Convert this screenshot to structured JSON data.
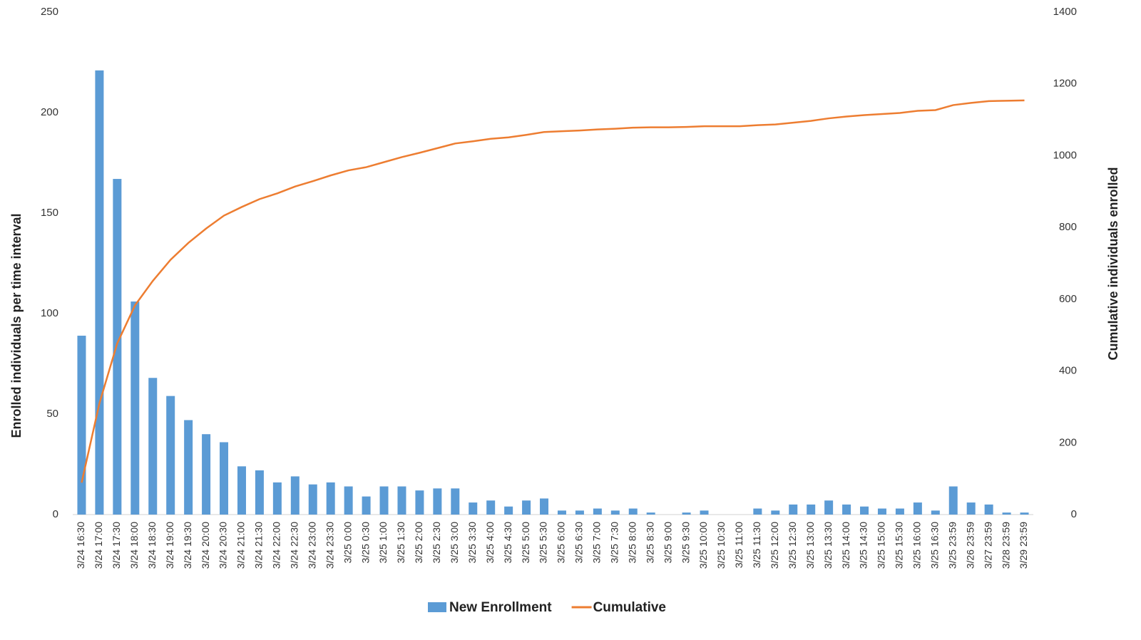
{
  "chart_data": {
    "type": "bar_line",
    "y_label": "Enrolled individuals per time interval",
    "y2_label": "Cumulative individuals enrolled",
    "categories": [
      "3/24 16:30",
      "3/24 17:00",
      "3/24 17:30",
      "3/24 18:00",
      "3/24 18:30",
      "3/24 19:00",
      "3/24 19:30",
      "3/24 20:00",
      "3/24 20:30",
      "3/24 21:00",
      "3/24 21:30",
      "3/24 22:00",
      "3/24 22:30",
      "3/24 23:00",
      "3/24 23:30",
      "3/25 0:00",
      "3/25 0:30",
      "3/25 1:00",
      "3/25 1:30",
      "3/25 2:00",
      "3/25 2:30",
      "3/25 3:00",
      "3/25 3:30",
      "3/25 4:00",
      "3/25 4:30",
      "3/25 5:00",
      "3/25 5:30",
      "3/25 6:00",
      "3/25 6:30",
      "3/25 7:00",
      "3/25 7:30",
      "3/25 8:00",
      "3/25 8:30",
      "3/25 9:00",
      "3/25 9:30",
      "3/25 10:00",
      "3/25 10:30",
      "3/25 11:00",
      "3/25 11:30",
      "3/25 12:00",
      "3/25 12:30",
      "3/25 13:00",
      "3/25 13:30",
      "3/25 14:00",
      "3/25 14:30",
      "3/25 15:00",
      "3/25 15:30",
      "3/25 16:00",
      "3/25 16:30",
      "3/25 23:59",
      "3/26 23:59",
      "3/27 23:59",
      "3/28 23:59",
      "3/29 23:59"
    ],
    "series": [
      {
        "name": "New Enrollment",
        "type": "bar",
        "color": "#5b9bd5",
        "values": [
          89,
          221,
          167,
          106,
          68,
          59,
          47,
          40,
          36,
          24,
          22,
          16,
          19,
          15,
          16,
          14,
          9,
          14,
          14,
          12,
          13,
          13,
          6,
          7,
          4,
          7,
          8,
          2,
          2,
          3,
          2,
          3,
          1,
          0,
          1,
          2,
          0,
          0,
          3,
          2,
          5,
          5,
          7,
          5,
          4,
          3,
          3,
          6,
          2,
          14,
          6,
          5,
          1,
          1
        ]
      },
      {
        "name": "Cumulative",
        "type": "line",
        "axis": "y2",
        "color": "#ed7d31",
        "values": [
          89,
          310,
          477,
          583,
          651,
          710,
          757,
          797,
          833,
          857,
          879,
          895,
          914,
          929,
          945,
          959,
          968,
          982,
          996,
          1008,
          1021,
          1034,
          1040,
          1047,
          1051,
          1058,
          1066,
          1068,
          1070,
          1073,
          1075,
          1078,
          1079,
          1079,
          1080,
          1082,
          1082,
          1082,
          1085,
          1087,
          1092,
          1097,
          1104,
          1109,
          1113,
          1116,
          1119,
          1125,
          1127,
          1141,
          1147,
          1152,
          1153,
          1154
        ]
      }
    ],
    "ylim": [
      0,
      250
    ],
    "yticks": [
      0,
      50,
      100,
      150,
      200,
      250
    ],
    "y2lim": [
      0,
      1400
    ],
    "y2ticks": [
      0,
      200,
      400,
      600,
      800,
      1000,
      1200,
      1400
    ],
    "legend": "bottom"
  }
}
